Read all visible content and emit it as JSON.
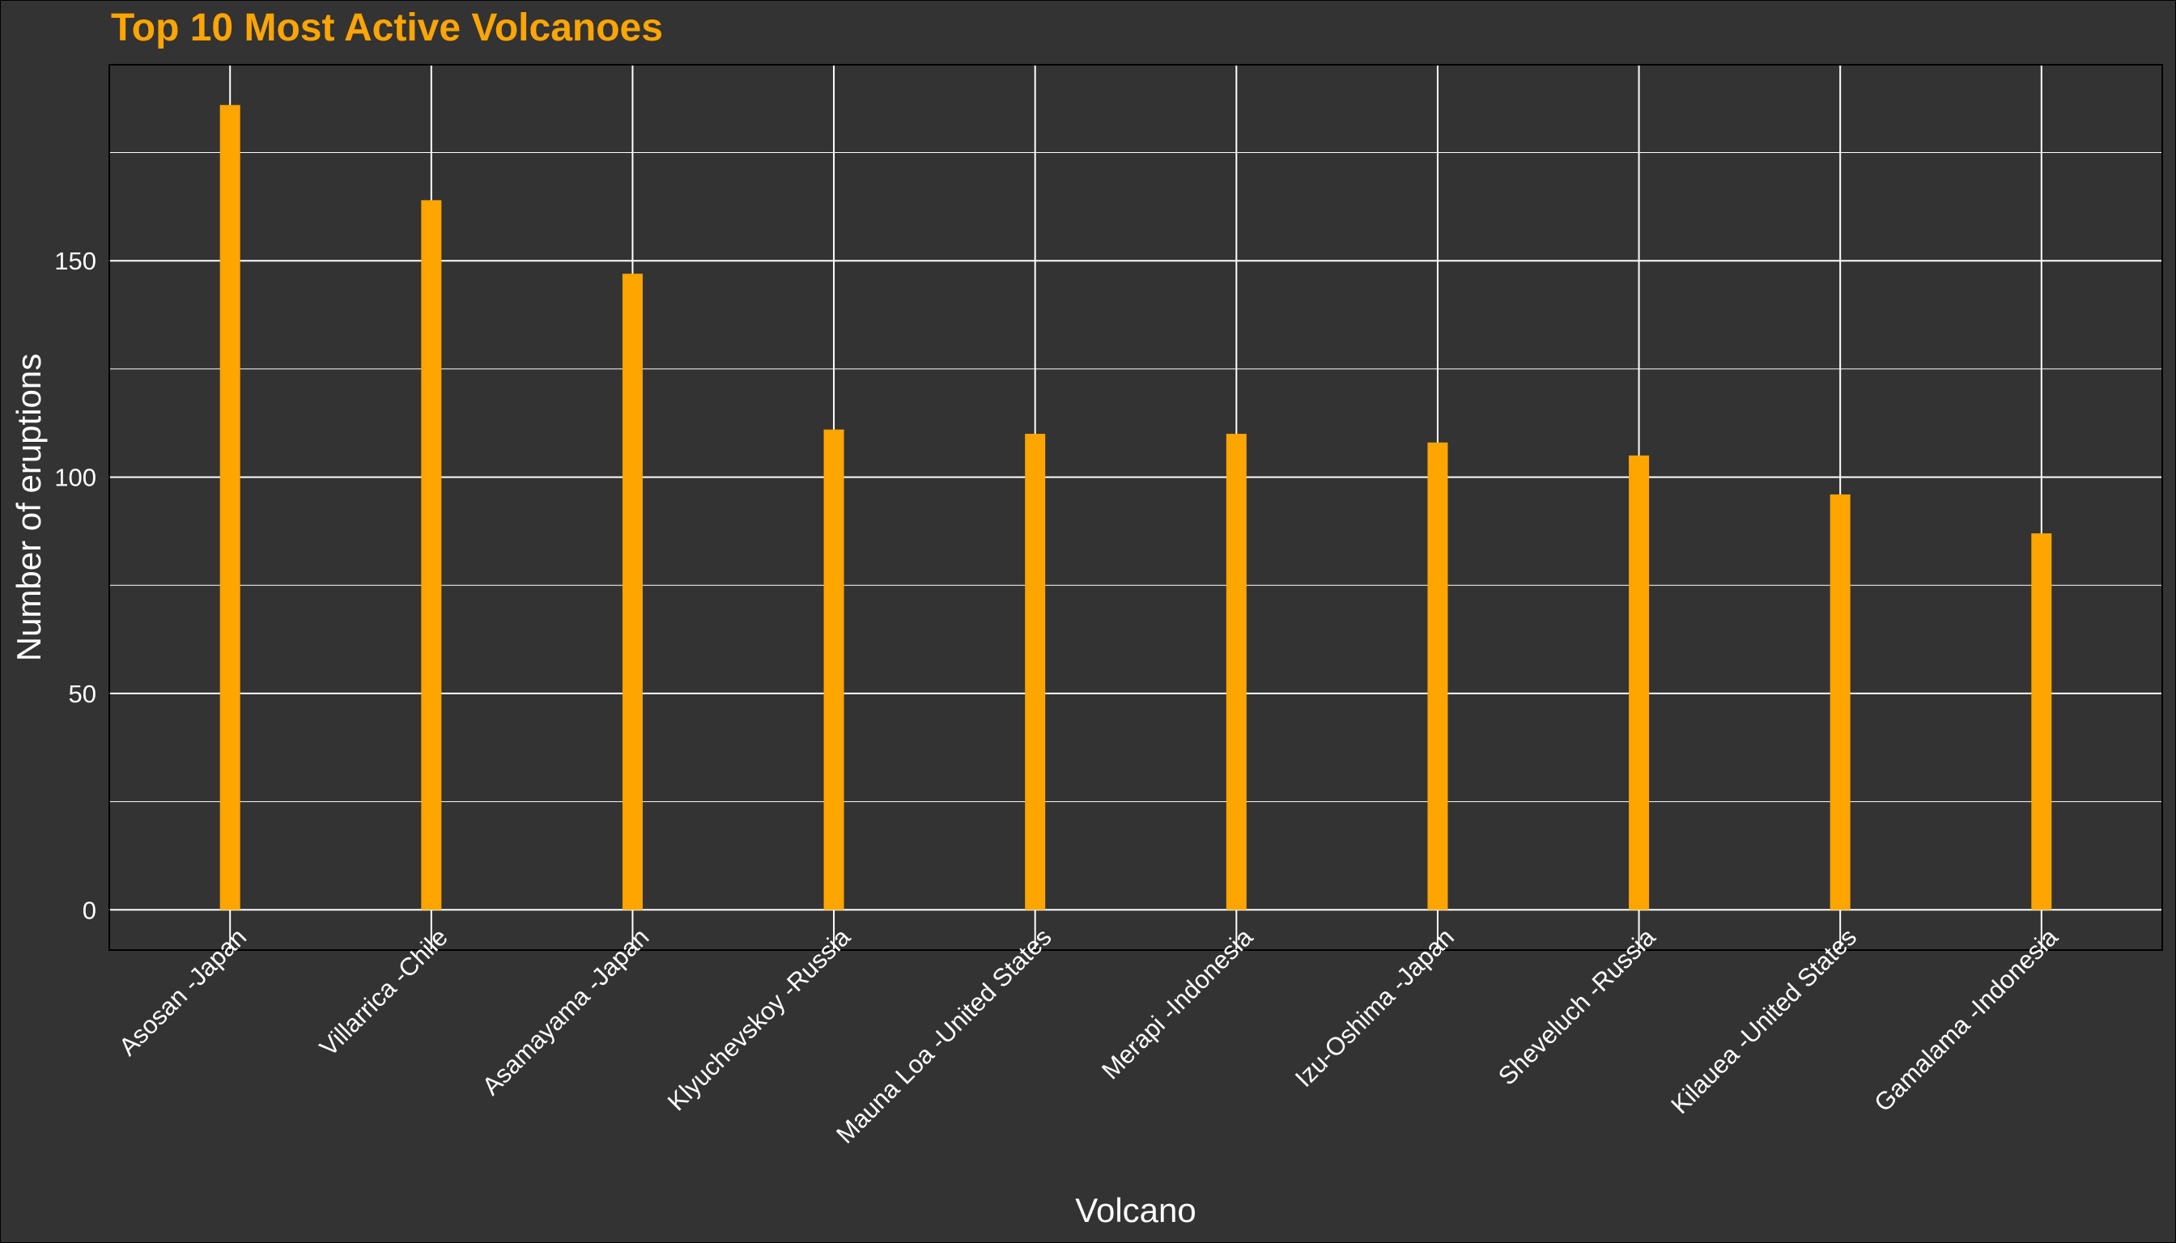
{
  "chart_data": {
    "type": "bar",
    "title": "Top 10 Most Active Volcanoes",
    "xlabel": "Volcano",
    "ylabel": "Number of eruptions",
    "categories": [
      "Asosan -Japan",
      "Villarrica -Chile",
      "Asamayama -Japan",
      "Klyuchevskoy -Russia",
      "Mauna Loa -United States",
      "Merapi -Indonesia",
      "Izu-Oshima -Japan",
      "Sheveluch -Russia",
      "Kilauea -United States",
      "Gamalama -Indonesia"
    ],
    "values": [
      186,
      164,
      147,
      111,
      110,
      110,
      108,
      105,
      96,
      87
    ],
    "ylim": [
      -9.3,
      195.3
    ],
    "yticks": [
      0,
      50,
      100,
      150
    ],
    "grid": true,
    "legend": "none",
    "colors": {
      "background": "#333333",
      "bar": "#FFA500",
      "title": "#FFA500",
      "grid": "#FFFFFF",
      "text": "#FFFFFF",
      "border": "#000000"
    }
  }
}
